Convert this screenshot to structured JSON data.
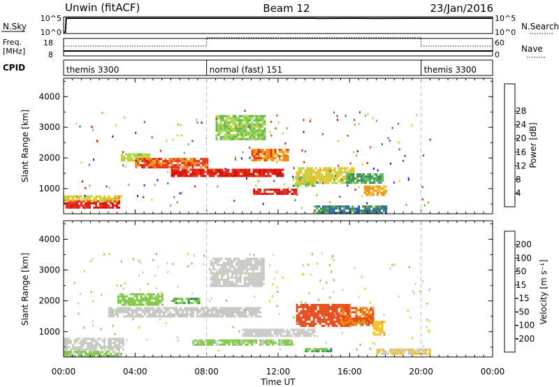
{
  "header": {
    "station": "Unwin (fitACF)",
    "beam": "Beam 12",
    "date": "23/Jan/2016"
  },
  "panels": {
    "nsky_label": "N.Sky",
    "nsky_ticks": [
      "10^5",
      "10^0"
    ],
    "nsearch_label": "N.Search",
    "nsearch_ticks": [
      "10^5",
      "10^0"
    ],
    "freq_label_1": "Freq.",
    "freq_label_2": "[MHz]",
    "freq_ticks": [
      "18",
      "8"
    ],
    "nave_label": "Nave",
    "nave_ticks": [
      "60",
      "0"
    ],
    "cpid_label": "CPID",
    "cpid_segments": [
      {
        "label": "themis 3300",
        "start_hour": 0,
        "end_hour": 8
      },
      {
        "label": "normal (fast) 151",
        "start_hour": 8,
        "end_hour": 20
      },
      {
        "label": "themis 3300",
        "start_hour": 20,
        "end_hour": 24
      }
    ]
  },
  "axes": {
    "xlabel": "Time UT",
    "xticks": [
      "00:00",
      "04:00",
      "08:00",
      "12:00",
      "16:00",
      "20:00",
      "00:00"
    ],
    "ylabel": "Slant Range [km]",
    "yticks": [
      "1000",
      "2000",
      "3000",
      "4000"
    ]
  },
  "colorbars": {
    "power": {
      "label": "Power [dB]",
      "ticks": [
        "4",
        "8",
        "12",
        "16",
        "20",
        "24",
        "28"
      ],
      "colors": [
        "#0018f0",
        "#2850b8",
        "#2f8a5a",
        "#62b65a",
        "#a8d848",
        "#f0c020",
        "#f08a10",
        "#e83018",
        "#d81010"
      ]
    },
    "velocity": {
      "label": "Velocity [m s⁻¹]",
      "ticks": [
        "200",
        "100",
        "50",
        "15",
        "-15",
        "-50",
        "-100",
        "-200"
      ],
      "colors": [
        "#1010c8",
        "#2858d0",
        "#2f8a5a",
        "#7cc840",
        "#c8c8c4",
        "#f2c020",
        "#f08a10",
        "#e84818",
        "#d81010"
      ]
    }
  },
  "chart_data": [
    {
      "type": "line",
      "name": "sky_noise_panel",
      "x_unit": "hour UT",
      "y_scale": "log",
      "ylim": [
        1,
        100000
      ],
      "x": [
        0,
        0.1,
        0.15,
        14,
        14.2,
        16.3,
        17.5,
        19.7,
        20,
        24
      ],
      "values": [
        1,
        1,
        100000,
        100000,
        90000,
        100000,
        90000,
        100000,
        100000,
        100000
      ]
    },
    {
      "type": "line",
      "name": "frequency_nave_panel",
      "x_unit": "hour UT",
      "ylim": [
        8,
        18
      ],
      "series": [
        {
          "x": [
            0,
            8,
            8,
            20,
            20,
            24
          ],
          "values": [
            10.5,
            10.5,
            10.5,
            10.5,
            10.5,
            10.5
          ]
        },
        {
          "x": [
            0,
            8,
            8,
            20,
            20,
            24
          ],
          "values": [
            14,
            14,
            20,
            20,
            14,
            14
          ]
        }
      ]
    },
    {
      "type": "heatmap",
      "name": "power",
      "x_unit": "hour UT",
      "y_unit": "km",
      "xlim": [
        0,
        24
      ],
      "ylim": [
        180,
        4600
      ],
      "value_range": [
        0,
        30
      ],
      "regions": [
        {
          "t0": 0.0,
          "t1": 3.1,
          "r0": 380,
          "r1": 620,
          "val": 27
        },
        {
          "t0": 0.0,
          "t1": 3.2,
          "r0": 620,
          "r1": 780,
          "val": 18
        },
        {
          "t0": 3.2,
          "t1": 4.8,
          "r0": 1900,
          "r1": 2150,
          "val": 16
        },
        {
          "t0": 4.0,
          "t1": 8.0,
          "r0": 1700,
          "r1": 2000,
          "val": 24
        },
        {
          "t0": 6.0,
          "t1": 12.3,
          "r0": 1400,
          "r1": 1650,
          "val": 27
        },
        {
          "t0": 10.5,
          "t1": 12.5,
          "r0": 1900,
          "r1": 2300,
          "val": 22
        },
        {
          "t0": 10.6,
          "t1": 13.0,
          "r0": 850,
          "r1": 1000,
          "val": 27
        },
        {
          "t0": 12.8,
          "t1": 14.0,
          "r0": 1100,
          "r1": 1400,
          "val": 12
        },
        {
          "t0": 13.0,
          "t1": 16.2,
          "r0": 1200,
          "r1": 1700,
          "val": 17
        },
        {
          "t0": 15.8,
          "t1": 17.8,
          "r0": 1200,
          "r1": 1500,
          "val": 10
        },
        {
          "t0": 16.8,
          "t1": 18.0,
          "r0": 800,
          "r1": 1100,
          "val": 20
        },
        {
          "t0": 8.5,
          "t1": 11.3,
          "r0": 2600,
          "r1": 3400,
          "val": 14
        },
        {
          "t0": 14.0,
          "t1": 18.0,
          "r0": 200,
          "r1": 450,
          "val": 8
        }
      ]
    },
    {
      "type": "heatmap",
      "name": "velocity",
      "x_unit": "hour UT",
      "y_unit": "km",
      "xlim": [
        0,
        24
      ],
      "ylim": [
        180,
        4600
      ],
      "value_range": [
        -250,
        250
      ],
      "regions": [
        {
          "t0": 0.0,
          "t1": 3.2,
          "r0": 230,
          "r1": 380,
          "val": -35
        },
        {
          "t0": 0.0,
          "t1": 3.3,
          "r0": 450,
          "r1": 800,
          "val": 0
        },
        {
          "t0": 3.0,
          "t1": 5.5,
          "r0": 1900,
          "r1": 2250,
          "val": -60
        },
        {
          "t0": 2.5,
          "t1": 11.0,
          "r0": 1500,
          "r1": 1800,
          "val": 0
        },
        {
          "t0": 7.2,
          "t1": 12.8,
          "r0": 600,
          "r1": 750,
          "val": -35
        },
        {
          "t0": 10.0,
          "t1": 14.0,
          "r0": 850,
          "r1": 1100,
          "val": 0
        },
        {
          "t0": 13.0,
          "t1": 16.0,
          "r0": 1200,
          "r1": 1900,
          "val": 160
        },
        {
          "t0": 15.5,
          "t1": 17.3,
          "r0": 1200,
          "r1": 1800,
          "val": 140
        },
        {
          "t0": 17.3,
          "t1": 18.0,
          "r0": 900,
          "r1": 1350,
          "val": 70
        },
        {
          "t0": 13.5,
          "t1": 15.0,
          "r0": 380,
          "r1": 470,
          "val": -80
        },
        {
          "t0": 17.5,
          "t1": 20.5,
          "r0": 250,
          "r1": 450,
          "val": 30
        },
        {
          "t0": 8.2,
          "t1": 11.2,
          "r0": 2500,
          "r1": 3400,
          "val": 0
        },
        {
          "t0": 6.0,
          "t1": 7.6,
          "r0": 1900,
          "r1": 2100,
          "val": -80
        }
      ]
    }
  ]
}
